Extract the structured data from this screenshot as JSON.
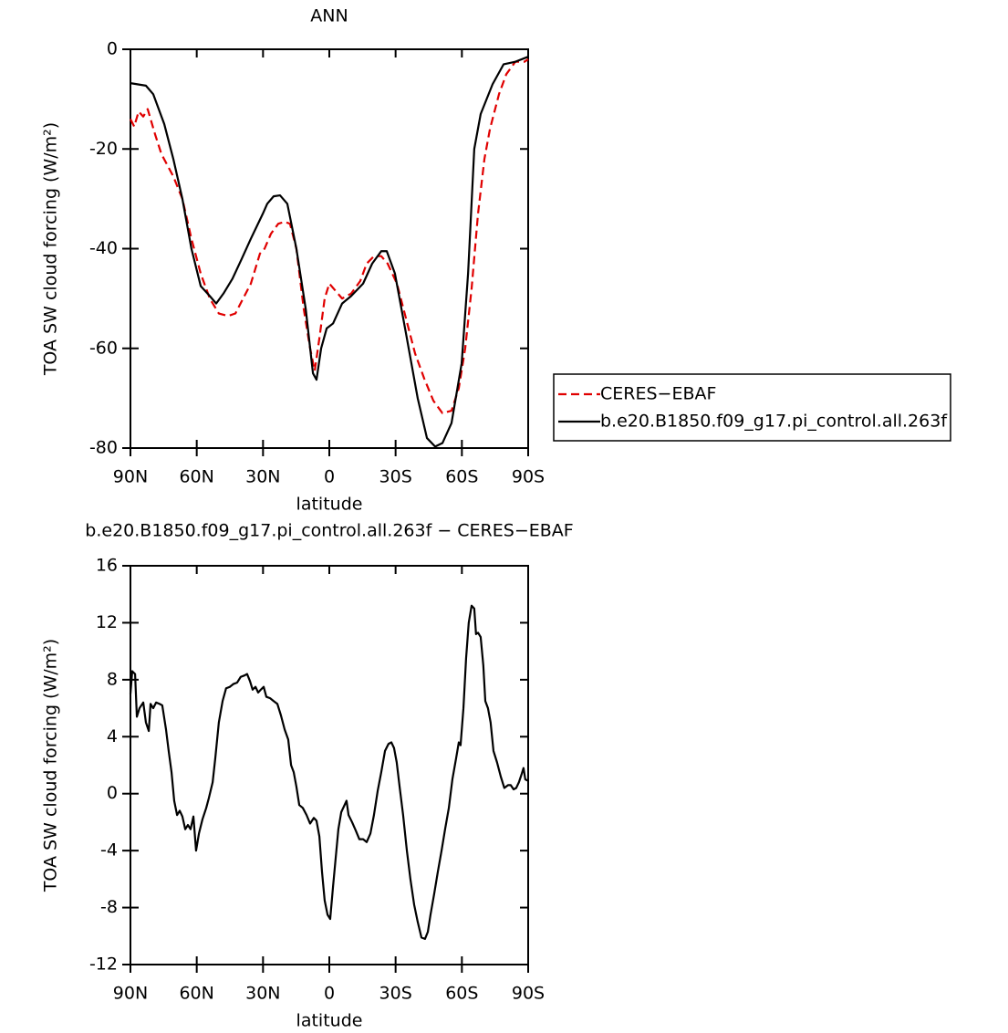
{
  "chart_data": [
    {
      "type": "line",
      "title": "ANN",
      "x_label": "latitude",
      "y_label": "TOA SW cloud forcing (W/m²)",
      "xlim": [
        90,
        -90
      ],
      "xticks": [
        {
          "value": 90,
          "label": "90N"
        },
        {
          "value": 60,
          "label": "60N"
        },
        {
          "value": 30,
          "label": "30N"
        },
        0,
        {
          "value": -30,
          "label": "30S"
        },
        {
          "value": -60,
          "label": "60S"
        },
        {
          "value": -90,
          "label": "90S"
        }
      ],
      "ylim": [
        -80,
        0
      ],
      "yticks": [
        0,
        -20,
        -40,
        -60,
        -80
      ],
      "legend": "right",
      "series": [
        {
          "name": "CERES−EBAF",
          "color": "#e00000",
          "style": "dashed",
          "x": [
            90,
            88.3,
            86.3,
            84.2,
            82.2,
            78.9,
            76.0,
            70.6,
            66.5,
            62.4,
            58.2,
            54.1,
            50.0,
            45.8,
            42.5,
            39.6,
            35.5,
            31.4,
            29.3,
            26.4,
            23.1,
            20.2,
            17.8,
            14.9,
            11.6,
            8.7,
            6.6,
            4.5,
            2.1,
            0,
            -2.9,
            -5.8,
            -9.9,
            -14.0,
            -16.9,
            -20.2,
            -23.5,
            -26.4,
            -30.6,
            -34.7,
            -38.8,
            -42.9,
            -47.1,
            -51.2,
            -55.3,
            -58.6,
            -61.5,
            -64.4,
            -67.3,
            -70.2,
            -72.7,
            -76.8,
            -80.1,
            -84.2,
            -88.3,
            -90
          ],
          "values": [
            -14,
            -15.5,
            -12.5,
            -13.5,
            -12,
            -17,
            -21,
            -25.5,
            -30,
            -38,
            -45,
            -50,
            -53,
            -53.5,
            -53,
            -50.5,
            -47,
            -41,
            -40,
            -37,
            -35,
            -34.6,
            -35,
            -40,
            -52,
            -60,
            -64.5,
            -58,
            -50,
            -47,
            -48.5,
            -50,
            -49,
            -46.5,
            -43,
            -41.5,
            -41.5,
            -43,
            -47,
            -54,
            -61,
            -66,
            -70.5,
            -73,
            -72.5,
            -68,
            -60,
            -48,
            -33,
            -22,
            -16,
            -9,
            -5,
            -2.5,
            -2.5,
            -2
          ]
        },
        {
          "name": "b.e20.B1850.f09_g17.pi_control.all.263f",
          "color": "#000000",
          "style": "solid",
          "x": [
            90,
            83.0,
            79.7,
            74.7,
            70.6,
            66.5,
            62.4,
            58.2,
            54.1,
            51.2,
            47.9,
            43.8,
            39.6,
            35.5,
            30.1,
            28.1,
            25.2,
            22.3,
            19.0,
            14.9,
            10.7,
            7.4,
            5.8,
            3.7,
            1.2,
            -1.7,
            -5.8,
            -9.9,
            -15.3,
            -19.4,
            -23.5,
            -26.0,
            -29.7,
            -34.7,
            -40.0,
            -44.2,
            -47.9,
            -51.2,
            -55.3,
            -59.9,
            -62.8,
            -65.6,
            -68.5,
            -73.9,
            -78.9,
            -84.2,
            -90
          ],
          "values": [
            -6.8,
            -7.3,
            -9,
            -15,
            -22,
            -30,
            -40,
            -47.5,
            -49.5,
            -51,
            -49,
            -46,
            -42,
            -38,
            -33,
            -31,
            -29.5,
            -29.3,
            -31,
            -40,
            -52,
            -65,
            -66.3,
            -60,
            -56,
            -55,
            -51,
            -49.5,
            -47,
            -43,
            -40.5,
            -40.5,
            -45,
            -57,
            -70,
            -78,
            -79.7,
            -79,
            -75,
            -63,
            -45,
            -20,
            -13,
            -7,
            -3,
            -2.5,
            -1.5
          ]
        }
      ]
    },
    {
      "type": "line",
      "title": "b.e20.B1850.f09_g17.pi_control.all.263f − CERES−EBAF",
      "x_label": "latitude",
      "y_label": "TOA SW cloud forcing (W/m²)",
      "xlim": [
        90,
        -90
      ],
      "xticks": [
        {
          "value": 90,
          "label": "90N"
        },
        {
          "value": 60,
          "label": "60N"
        },
        {
          "value": 30,
          "label": "30N"
        },
        0,
        {
          "value": -30,
          "label": "30S"
        },
        {
          "value": -60,
          "label": "60S"
        },
        {
          "value": -90,
          "label": "90S"
        }
      ],
      "ylim": [
        -12,
        16
      ],
      "yticks": [
        16,
        12,
        8,
        4,
        0,
        -4,
        -8,
        -12
      ],
      "x": [
        90,
        89.2,
        87.9,
        87.1,
        85.9,
        84.2,
        83.0,
        81.7,
        80.9,
        79.7,
        78.4,
        76.8,
        75.6,
        73.9,
        72.7,
        71.4,
        70.2,
        68.9,
        67.7,
        66.5,
        65.2,
        64.0,
        62.8,
        61.5,
        60.3,
        59.0,
        57.4,
        55.7,
        54.5,
        52.8,
        51.6,
        50.0,
        48.3,
        46.7,
        45.0,
        43.4,
        41.7,
        40.1,
        38.4,
        37.2,
        35.9,
        34.7,
        33.4,
        32.2,
        31.0,
        29.7,
        28.5,
        26.8,
        25.2,
        23.5,
        21.9,
        20.2,
        18.6,
        17.3,
        16.1,
        14.9,
        13.6,
        12.0,
        10.3,
        8.7,
        7.0,
        5.8,
        4.5,
        3.3,
        2.1,
        0.8,
        -0.4,
        -1.7,
        -2.9,
        -4.1,
        -5.4,
        -6.6,
        -7.8,
        -8.7,
        -10.3,
        -12.0,
        -13.6,
        -15.3,
        -16.9,
        -18.6,
        -20.2,
        -21.9,
        -23.5,
        -25.2,
        -26.8,
        -28.1,
        -29.3,
        -30.5,
        -31.8,
        -33.4,
        -35.1,
        -36.7,
        -38.4,
        -40.0,
        -41.7,
        -43.3,
        -44.6,
        -45.8,
        -47.5,
        -49.1,
        -50.8,
        -52.4,
        -54.1,
        -55.7,
        -57.4,
        -58.6,
        -59.4,
        -60.7,
        -61.9,
        -63.1,
        -64.4,
        -65.6,
        -66.4,
        -67.3,
        -68.5,
        -69.7,
        -70.6,
        -71.8,
        -73.0,
        -74.3,
        -75.9,
        -77.6,
        -79.2,
        -80.9,
        -82.1,
        -83.4,
        -84.6,
        -85.8,
        -87.1,
        -87.9,
        -88.7,
        -90
      ],
      "series": [
        {
          "color": "#000000",
          "style": "solid",
          "values": [
            7,
            8.6,
            8.4,
            5.4,
            6,
            6.4,
            5,
            4.4,
            6.3,
            6,
            6.4,
            6.3,
            6.2,
            4.5,
            3,
            1.5,
            -0.5,
            -1.5,
            -1.2,
            -1.6,
            -2.5,
            -2.2,
            -2.5,
            -1.6,
            -4,
            -2.8,
            -1.8,
            -1,
            -0.3,
            0.8,
            2.5,
            5,
            6.5,
            7.4,
            7.5,
            7.7,
            7.8,
            8.2,
            8.3,
            8.4,
            7.9,
            7.3,
            7.5,
            7.1,
            7.3,
            7.5,
            6.8,
            6.7,
            6.5,
            6.3,
            5.5,
            4.5,
            3.8,
            2,
            1.5,
            0.5,
            -0.8,
            -1,
            -1.5,
            -2.1,
            -1.7,
            -1.9,
            -3,
            -5.5,
            -7.5,
            -8.5,
            -8.8,
            -6.5,
            -4.5,
            -2.5,
            -1.3,
            -0.9,
            -0.5,
            -1.5,
            -2,
            -2.6,
            -3.2,
            -3.2,
            -3.4,
            -2.8,
            -1.5,
            0.2,
            1.5,
            3,
            3.5,
            3.6,
            3.2,
            2.2,
            0.5,
            -1.5,
            -4,
            -6,
            -7.8,
            -9,
            -10.1,
            -10.2,
            -9.7,
            -8.5,
            -7,
            -5.5,
            -4,
            -2.5,
            -1,
            1,
            2.5,
            3.6,
            3.4,
            6,
            9.5,
            12,
            13.2,
            13,
            11.2,
            11.3,
            11,
            9,
            6.5,
            6,
            5,
            3,
            2.2,
            1.2,
            0.4,
            0.6,
            0.6,
            0.3,
            0.4,
            0.8,
            1.4,
            1.8,
            1,
            0.9
          ]
        }
      ]
    }
  ]
}
